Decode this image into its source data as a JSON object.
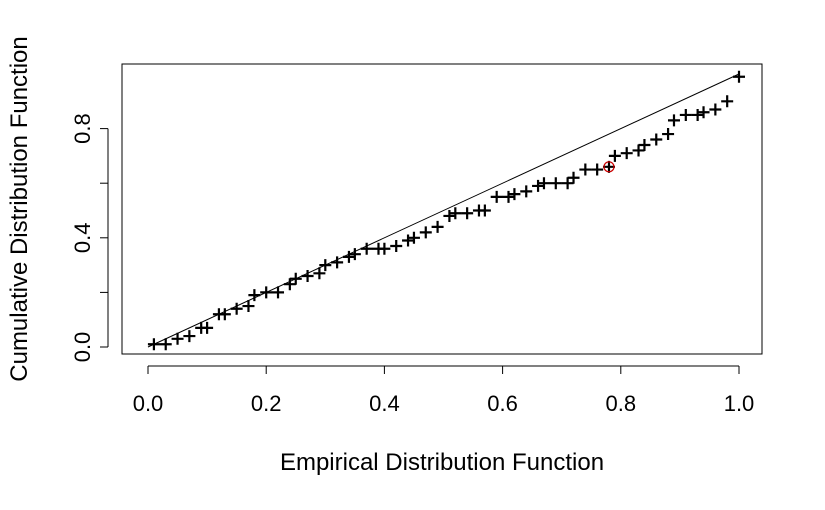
{
  "chart_data": {
    "type": "scatter",
    "title": "",
    "xlabel": "Empirical Distribution Function",
    "ylabel": "Cumulative Distribution Function",
    "xlim": [
      0.0,
      1.0
    ],
    "ylim": [
      0.0,
      1.0
    ],
    "x_ticks": [
      0.0,
      0.2,
      0.4,
      0.6,
      0.8,
      1.0
    ],
    "x_tick_labels": [
      "0.0",
      "0.2",
      "0.4",
      "0.6",
      "0.8",
      "1.0"
    ],
    "y_ticks": [
      0.0,
      0.2,
      0.4,
      0.6,
      0.8
    ],
    "y_tick_labels": [
      "0.0",
      "",
      "0.4",
      "",
      "0.8"
    ],
    "grid": false,
    "legend": "none",
    "reference_line": {
      "x": [
        0,
        1
      ],
      "y": [
        0,
        1
      ]
    },
    "marker": "plus",
    "point_color": "#000000",
    "highlight_color": "#cc0000",
    "highlight": {
      "x": 0.78,
      "y": 0.66
    },
    "x": [
      0.01,
      0.03,
      0.05,
      0.07,
      0.09,
      0.1,
      0.12,
      0.13,
      0.15,
      0.17,
      0.18,
      0.2,
      0.22,
      0.24,
      0.25,
      0.27,
      0.29,
      0.3,
      0.32,
      0.34,
      0.35,
      0.37,
      0.39,
      0.4,
      0.42,
      0.44,
      0.45,
      0.47,
      0.49,
      0.51,
      0.52,
      0.54,
      0.56,
      0.57,
      0.59,
      0.61,
      0.62,
      0.64,
      0.66,
      0.67,
      0.69,
      0.71,
      0.72,
      0.74,
      0.76,
      0.78,
      0.79,
      0.81,
      0.83,
      0.84,
      0.86,
      0.88,
      0.89,
      0.91,
      0.93,
      0.94,
      0.96,
      0.98,
      1.0
    ],
    "y": [
      0.01,
      0.01,
      0.03,
      0.04,
      0.07,
      0.07,
      0.12,
      0.12,
      0.14,
      0.15,
      0.19,
      0.2,
      0.2,
      0.23,
      0.25,
      0.26,
      0.27,
      0.3,
      0.31,
      0.33,
      0.34,
      0.36,
      0.36,
      0.36,
      0.37,
      0.39,
      0.4,
      0.42,
      0.44,
      0.48,
      0.49,
      0.49,
      0.5,
      0.5,
      0.55,
      0.55,
      0.56,
      0.57,
      0.59,
      0.6,
      0.6,
      0.6,
      0.62,
      0.65,
      0.65,
      0.66,
      0.7,
      0.71,
      0.72,
      0.74,
      0.76,
      0.78,
      0.83,
      0.85,
      0.85,
      0.86,
      0.87,
      0.9,
      0.99
    ]
  }
}
